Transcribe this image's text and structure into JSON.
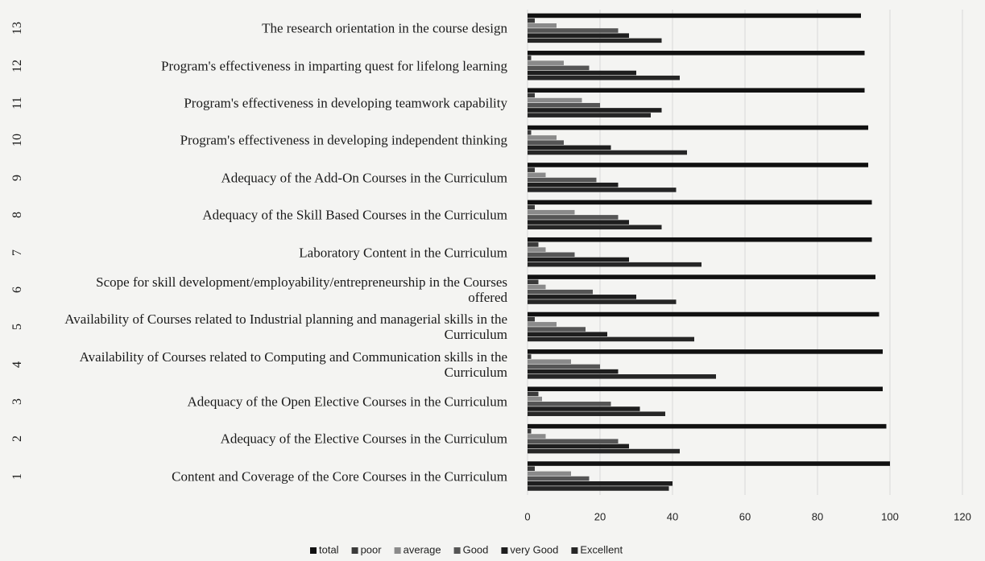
{
  "chart_data": {
    "type": "hbar",
    "category_numbers": [
      "1",
      "2",
      "3",
      "4",
      "5",
      "6",
      "7",
      "8",
      "9",
      "10",
      "11",
      "12",
      "13"
    ],
    "categories": [
      "Content and Coverage of the Core Courses in the Curriculum",
      "Adequacy of the Elective Courses in the Curriculum",
      "Adequacy of the Open Elective Courses in the Curriculum",
      "Availability of Courses related to Computing and Communication skills in the Curriculum",
      "Availability of Courses related to Industrial planning and managerial skills in the Curriculum",
      "Scope for skill development/employability/entrepreneurship in the Courses offered",
      "Laboratory Content in the Curriculum",
      "Adequacy of the Skill Based Courses in the Curriculum",
      "Adequacy of the Add-On Courses in the Curriculum",
      "Program's effectiveness in developing independent thinking",
      "Program's effectiveness in developing teamwork capability",
      "Program's effectiveness in imparting quest for lifelong learning",
      "The research orientation in the course design"
    ],
    "series": [
      {
        "name": "total",
        "color": "#111111",
        "values": [
          100,
          99,
          98,
          98,
          97,
          96,
          95,
          95,
          94,
          94,
          93,
          93,
          92
        ]
      },
      {
        "name": "poor",
        "color": "#3a3a3a",
        "values": [
          2,
          1,
          3,
          1,
          2,
          3,
          3,
          2,
          2,
          1,
          2,
          1,
          2
        ]
      },
      {
        "name": "average",
        "color": "#8a8a8a",
        "values": [
          12,
          5,
          4,
          12,
          8,
          5,
          5,
          13,
          5,
          8,
          15,
          10,
          8
        ]
      },
      {
        "name": "Good",
        "color": "#555555",
        "values": [
          17,
          25,
          23,
          20,
          16,
          18,
          13,
          25,
          19,
          10,
          20,
          17,
          25
        ]
      },
      {
        "name": "very Good",
        "color": "#1e1e1e",
        "values": [
          40,
          28,
          31,
          25,
          22,
          30,
          28,
          28,
          25,
          23,
          37,
          30,
          28
        ]
      },
      {
        "name": "Excellent",
        "color": "#262626",
        "values": [
          39,
          42,
          38,
          52,
          46,
          41,
          48,
          37,
          41,
          44,
          34,
          42,
          37
        ]
      }
    ],
    "xlim": [
      0,
      120
    ],
    "xticks": [
      0,
      20,
      40,
      60,
      80,
      100,
      120
    ],
    "grid": true,
    "legend": "bottom"
  }
}
